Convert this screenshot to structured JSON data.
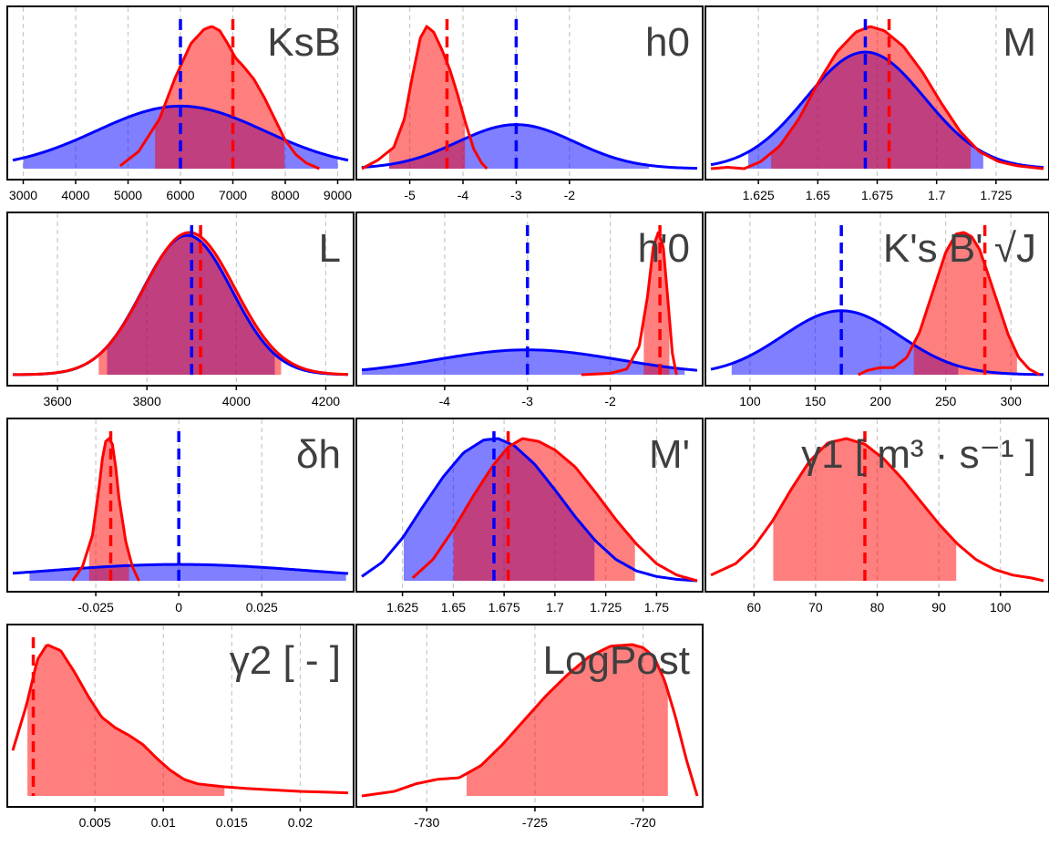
{
  "colors": {
    "prior": "#0000ff",
    "posterior": "#ff0000",
    "prior_fill": "#7f7fff",
    "posterior_fill": "#ff7f7f",
    "overlap_fill": "#b13a79",
    "grid": "#c8c8c8"
  },
  "chart_data": [
    {
      "type": "area",
      "title": "KsB",
      "xlim": [
        2800,
        9200
      ],
      "ticks": [
        3000,
        4000,
        5000,
        6000,
        7000,
        8000,
        9000
      ],
      "prior": {
        "mean": 6000,
        "sd": 1600,
        "x": [
          2800,
          9200
        ],
        "ci": [
          3000,
          9000
        ],
        "mode_density": 0.44
      },
      "posterior": {
        "x": [
          4850,
          5200,
          5600,
          5900,
          6200,
          6450,
          6600,
          6750,
          6900,
          7050,
          7200,
          7400,
          7600,
          7800,
          8000,
          8200,
          8400,
          8650
        ],
        "y": [
          0.02,
          0.12,
          0.35,
          0.64,
          0.88,
          0.98,
          1.0,
          0.97,
          0.88,
          0.78,
          0.72,
          0.63,
          0.5,
          0.35,
          0.2,
          0.1,
          0.04,
          0.0
        ],
        "ci": [
          5500,
          8000
        ]
      },
      "vlines": {
        "prior": 6000,
        "posterior": 7000
      }
    },
    {
      "type": "area",
      "title": "h0",
      "xlim": [
        -5.9,
        0.4
      ],
      "ticks": [
        -5,
        -4,
        -3,
        -2
      ],
      "tick_labels": [
        "-5",
        "-4",
        "-3",
        "-2"
      ],
      "prior": {
        "mean": -3,
        "sd": 1.1,
        "x": [
          -5.9,
          0.4
        ],
        "ci": [
          -5.4,
          -0.5
        ],
        "mode_density": 0.31
      },
      "posterior": {
        "x": [
          -5.9,
          -5.6,
          -5.3,
          -5.1,
          -4.95,
          -4.8,
          -4.68,
          -4.55,
          -4.4,
          -4.25,
          -4.1,
          -3.95,
          -3.8,
          -3.65,
          -3.55
        ],
        "y": [
          0.0,
          0.06,
          0.15,
          0.35,
          0.65,
          0.92,
          1.0,
          0.96,
          0.84,
          0.7,
          0.52,
          0.32,
          0.14,
          0.04,
          0.0
        ],
        "ci": [
          -5.4,
          -3.95
        ]
      },
      "vlines": {
        "prior": -3,
        "posterior": -4.3
      }
    },
    {
      "type": "area",
      "title": "M",
      "xlim": [
        1.605,
        1.745
      ],
      "ticks": [
        1.625,
        1.65,
        1.675,
        1.7,
        1.725
      ],
      "tick_labels": [
        "1.625",
        "1.65",
        "1.675",
        "1.7",
        "1.725"
      ],
      "prior": {
        "mean": 1.67,
        "sd": 0.025,
        "x": [
          1.605,
          1.745
        ],
        "ci": [
          1.62,
          1.72
        ],
        "mode_density": 0.82
      },
      "posterior": {
        "x": [
          1.605,
          1.612,
          1.619,
          1.626,
          1.634,
          1.642,
          1.65,
          1.658,
          1.666,
          1.672,
          1.678,
          1.686,
          1.694,
          1.702,
          1.71,
          1.718,
          1.726,
          1.734,
          1.745
        ],
        "y": [
          0.0,
          0.01,
          0.0,
          0.05,
          0.16,
          0.35,
          0.6,
          0.82,
          0.96,
          1.0,
          0.97,
          0.86,
          0.68,
          0.46,
          0.26,
          0.12,
          0.05,
          0.02,
          0.0
        ],
        "ci": [
          1.63,
          1.715
        ]
      },
      "vlines": {
        "prior": 1.67,
        "posterior": 1.68
      }
    },
    {
      "type": "area",
      "title": "L",
      "xlim": [
        3500,
        4250
      ],
      "ticks": [
        3600,
        3800,
        4000,
        4200
      ],
      "prior": {
        "mean": 3890,
        "sd": 100,
        "x": [
          3500,
          4250
        ],
        "ci": [
          3710,
          4090
        ],
        "mode_density": 0.98
      },
      "posterior": {
        "mean": 3895,
        "sd": 102,
        "x": [
          3500,
          4250
        ],
        "ci": [
          3690,
          4100
        ],
        "mode_density": 1.0
      },
      "vlines": {
        "prior": 3900,
        "posterior": 3920
      }
    },
    {
      "type": "area",
      "title": "h'0",
      "xlim": [
        -5.0,
        -0.95
      ],
      "ticks": [
        -4,
        -3,
        -2
      ],
      "tick_labels": [
        "-4",
        "-3",
        "-2"
      ],
      "prior": {
        "mean": -3,
        "sd": 1.1,
        "x": [
          -5.0,
          -0.95
        ],
        "ci": [
          -5.0,
          -1.1
        ],
        "mode_density": 0.175
      },
      "posterior": {
        "x": [
          -2.35,
          -2.0,
          -1.8,
          -1.65,
          -1.55,
          -1.48,
          -1.42,
          -1.36,
          -1.3,
          -1.25,
          -1.2
        ],
        "y": [
          0.0,
          0.01,
          0.04,
          0.2,
          0.55,
          0.9,
          1.0,
          0.9,
          0.5,
          0.15,
          0.0
        ],
        "ci": [
          -1.6,
          -1.28
        ]
      },
      "vlines": {
        "prior": -3,
        "posterior": -1.4
      }
    },
    {
      "type": "area",
      "title": "K's B' √J",
      "xlim": [
        70,
        325
      ],
      "ticks": [
        100,
        150,
        200,
        250,
        300
      ],
      "prior": {
        "mean": 170,
        "sd": 45,
        "x": [
          70,
          325
        ],
        "ci": [
          85,
          260
        ],
        "mode_density": 0.45
      },
      "posterior": {
        "x": [
          183,
          190,
          200,
          210,
          220,
          230,
          240,
          250,
          258,
          264,
          270,
          276,
          282,
          290,
          298,
          306,
          314,
          322
        ],
        "y": [
          0.0,
          0.03,
          0.05,
          0.05,
          0.12,
          0.3,
          0.58,
          0.86,
          0.99,
          1.0,
          0.97,
          0.88,
          0.72,
          0.5,
          0.28,
          0.12,
          0.04,
          0.0
        ],
        "ci": [
          225,
          305
        ]
      },
      "vlines": {
        "prior": 170,
        "posterior": 280
      }
    },
    {
      "type": "area",
      "title": "δh",
      "xlim": [
        -0.05,
        0.051
      ],
      "ticks": [
        -0.025,
        0,
        0.025
      ],
      "tick_labels": [
        "-0.025",
        "0",
        "0.025"
      ],
      "prior": {
        "mean": 0,
        "sd": 0.04,
        "x": [
          -0.05,
          0.051
        ],
        "ci": [
          -0.045,
          0.051
        ],
        "mode_density": 0.115
      },
      "posterior": {
        "x": [
          -0.032,
          -0.029,
          -0.026,
          -0.024,
          -0.023,
          -0.022,
          -0.021,
          -0.02,
          -0.019,
          -0.018,
          -0.016,
          -0.014,
          -0.012
        ],
        "y": [
          0.0,
          0.1,
          0.32,
          0.66,
          0.86,
          0.98,
          1.0,
          0.96,
          0.8,
          0.58,
          0.28,
          0.1,
          0.0
        ],
        "ci": [
          -0.027,
          -0.015
        ]
      },
      "vlines": {
        "prior": 0,
        "posterior": -0.0205
      }
    },
    {
      "type": "area",
      "title": "M'",
      "xlim": [
        1.605,
        1.77
      ],
      "ticks": [
        1.625,
        1.65,
        1.675,
        1.7,
        1.725,
        1.75
      ],
      "tick_labels": [
        "1.625",
        "1.65",
        "1.675",
        "1.7",
        "1.725",
        "1.75"
      ],
      "prior": {
        "x": [
          1.605,
          1.615,
          1.625,
          1.635,
          1.645,
          1.655,
          1.665,
          1.672,
          1.68,
          1.69,
          1.7,
          1.71,
          1.72,
          1.73,
          1.74,
          1.75,
          1.76,
          1.77
        ],
        "y": [
          0.03,
          0.13,
          0.3,
          0.52,
          0.73,
          0.9,
          0.99,
          1.0,
          0.95,
          0.82,
          0.64,
          0.45,
          0.28,
          0.15,
          0.07,
          0.03,
          0.01,
          0.0
        ],
        "ci": [
          1.625,
          1.72
        ]
      },
      "posterior": {
        "x": [
          1.63,
          1.64,
          1.65,
          1.66,
          1.67,
          1.677,
          1.684,
          1.692,
          1.7,
          1.71,
          1.72,
          1.73,
          1.74,
          1.75,
          1.76,
          1.77
        ],
        "y": [
          0.02,
          0.15,
          0.36,
          0.6,
          0.82,
          0.94,
          1.0,
          0.98,
          0.92,
          0.8,
          0.62,
          0.43,
          0.26,
          0.12,
          0.04,
          0.0
        ],
        "ci": [
          1.65,
          1.74
        ]
      },
      "vlines": {
        "prior": 1.67,
        "posterior": 1.677
      }
    },
    {
      "type": "area",
      "title": "γ1 [ m³ · s⁻¹ ]",
      "xlim": [
        53,
        107
      ],
      "ticks": [
        60,
        70,
        80,
        90,
        100
      ],
      "posterior": {
        "x": [
          53,
          57,
          60,
          63,
          66,
          69,
          72,
          75,
          78,
          81,
          84,
          87,
          90,
          93,
          96,
          99,
          102,
          105,
          107
        ],
        "y": [
          0.04,
          0.12,
          0.24,
          0.42,
          0.64,
          0.84,
          0.97,
          1.0,
          0.96,
          0.86,
          0.72,
          0.56,
          0.4,
          0.26,
          0.15,
          0.08,
          0.04,
          0.02,
          0.0
        ],
        "ci": [
          63,
          93
        ]
      },
      "vlines": {
        "posterior": 78
      }
    },
    {
      "type": "area",
      "title": "γ2 [ - ]",
      "xlim": [
        -0.001,
        0.0235
      ],
      "ticks": [
        0.005,
        0.01,
        0.015,
        0.02
      ],
      "tick_labels": [
        "0.005",
        "0.01",
        "0.015",
        "0.02"
      ],
      "posterior": {
        "x": [
          -0.001,
          0.0,
          0.0008,
          0.0015,
          0.0025,
          0.0035,
          0.0045,
          0.0055,
          0.0065,
          0.0075,
          0.0085,
          0.0095,
          0.0105,
          0.0115,
          0.0125,
          0.0135,
          0.0145,
          0.016,
          0.018,
          0.02,
          0.022,
          0.0235
        ],
        "y": [
          0.3,
          0.6,
          0.9,
          1.0,
          0.96,
          0.82,
          0.66,
          0.52,
          0.45,
          0.4,
          0.34,
          0.25,
          0.17,
          0.11,
          0.08,
          0.07,
          0.06,
          0.05,
          0.04,
          0.03,
          0.025,
          0.02
        ],
        "ci": [
          0.0,
          0.0145
        ]
      },
      "vlines": {
        "posterior": 0.0005
      }
    },
    {
      "type": "area",
      "title": "LogPost",
      "xlim": [
        -733,
        -717.5
      ],
      "ticks": [
        -730,
        -725,
        -720
      ],
      "tick_labels": [
        "-730",
        "-725",
        "-720"
      ],
      "posterior": {
        "x": [
          -733,
          -731.5,
          -730.5,
          -729.5,
          -728.5,
          -727.5,
          -726.5,
          -725.5,
          -724.5,
          -723.5,
          -722.5,
          -721.5,
          -720.5,
          -720,
          -719.5,
          -719,
          -718.5,
          -718,
          -717.5
        ],
        "y": [
          0.0,
          0.03,
          0.08,
          0.11,
          0.12,
          0.2,
          0.34,
          0.5,
          0.66,
          0.8,
          0.92,
          0.99,
          1.0,
          0.98,
          0.92,
          0.76,
          0.52,
          0.24,
          0.0
        ],
        "ci": [
          -728.2,
          -718.8
        ]
      }
    }
  ]
}
